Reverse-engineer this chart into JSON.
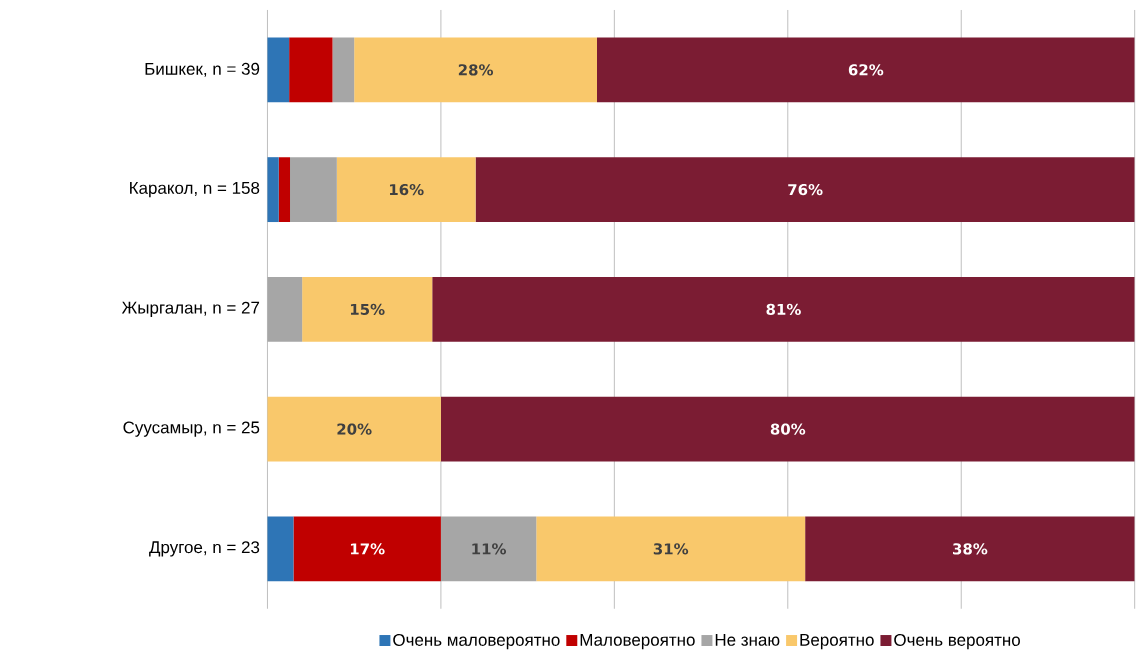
{
  "chart_data": {
    "type": "bar",
    "orientation": "horizontal",
    "stacked": true,
    "categories": [
      "Бишкек, n = 39",
      "Каракол, n = 158",
      "Жыргалан, n = 27",
      "Суусамыр, n = 25",
      "Другое, n = 23"
    ],
    "series": [
      {
        "name": "Очень маловероятно",
        "color": "#2e75b6",
        "values": [
          2.5,
          1.3,
          0,
          0,
          3
        ],
        "value_labels": [
          null,
          null,
          null,
          null,
          null
        ]
      },
      {
        "name": "Маловероятно",
        "color": "#c00000",
        "values": [
          5,
          1.3,
          0,
          0,
          17
        ],
        "value_labels": [
          null,
          null,
          null,
          null,
          "17%"
        ]
      },
      {
        "name": "Не знаю",
        "color": "#a6a6a6",
        "values": [
          2.5,
          5.4,
          4,
          0,
          11
        ],
        "value_labels": [
          null,
          null,
          null,
          null,
          "11%"
        ]
      },
      {
        "name": "Вероятно",
        "color": "#f9c86b",
        "values": [
          28,
          16,
          15,
          20,
          31
        ],
        "value_labels": [
          "28%",
          "16%",
          "15%",
          "20%",
          "31%"
        ]
      },
      {
        "name": "Очень вероятно",
        "color": "#7b1c33",
        "values": [
          62,
          76,
          81,
          80,
          38
        ],
        "value_labels": [
          "62%",
          "76%",
          "81%",
          "80%",
          "38%"
        ]
      }
    ],
    "xlim": [
      0,
      100
    ],
    "xticks": [
      {
        "value": 0,
        "label": null
      },
      {
        "value": 20,
        "label": null
      },
      {
        "value": 40,
        "label": null
      },
      {
        "value": 60,
        "label": null
      },
      {
        "value": 80,
        "label": null
      },
      {
        "value": 100,
        "label": null
      }
    ],
    "tick_labels": "y",
    "grid": "x",
    "legend": "bottom"
  }
}
